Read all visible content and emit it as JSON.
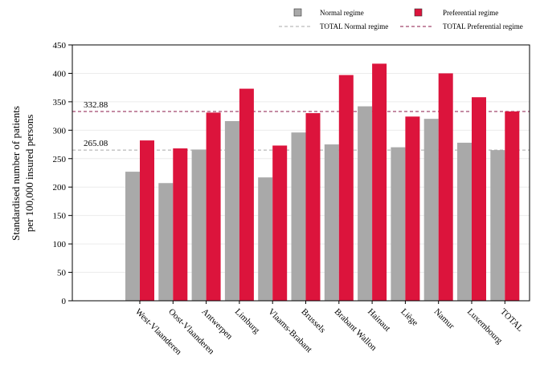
{
  "chart_data": {
    "type": "bar",
    "title": "",
    "xlabel": "",
    "ylabel": [
      "Standardised number of patients",
      "per 100,000 insured persons"
    ],
    "ylim": [
      0,
      450
    ],
    "yticks": [
      0,
      50,
      100,
      150,
      200,
      250,
      300,
      350,
      400,
      450
    ],
    "grid": true,
    "legend_position": "top",
    "categories": [
      "West-Vlaanderen",
      "Oost-Vlaanderen",
      "Antwerpen",
      "Limburg",
      "Vlaams-Brabant",
      "Brussels",
      "Brabant Wallon",
      "Hainaut",
      "Liège",
      "Namur",
      "Luxembourg",
      "TOTAL"
    ],
    "series": [
      {
        "name": "Normal regime",
        "color": "#a9a9a9",
        "values": [
          227,
          207,
          266,
          316,
          217,
          296,
          275,
          342,
          270,
          320,
          278,
          265
        ]
      },
      {
        "name": "Preferential regime",
        "color": "#dc143c",
        "values": [
          282,
          268,
          331,
          373,
          273,
          330,
          397,
          417,
          324,
          400,
          358,
          333
        ]
      }
    ],
    "reference_lines": [
      {
        "name": "TOTAL Normal regime",
        "value": 265.08,
        "label": "265.08",
        "color": "#a9a9a9",
        "dashed": true
      },
      {
        "name": "TOTAL Preferential regime",
        "value": 332.88,
        "label": "332.88",
        "color": "#8b1a4a",
        "dashed": true
      }
    ]
  }
}
